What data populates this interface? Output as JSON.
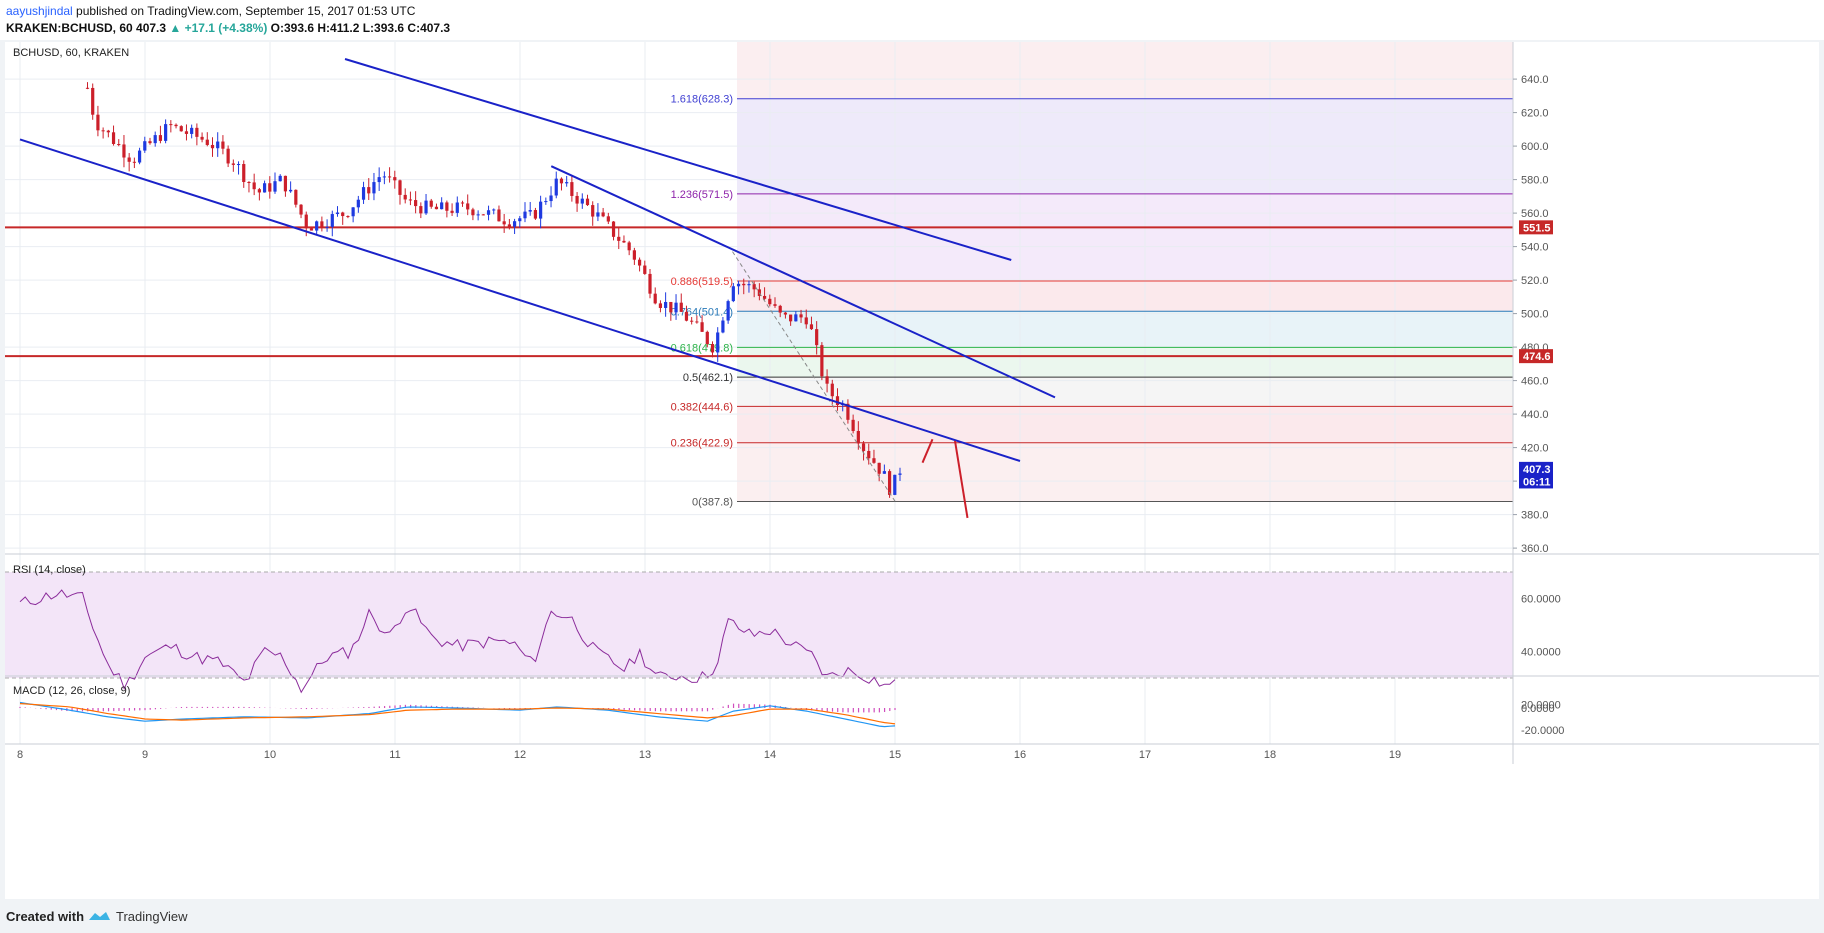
{
  "header": {
    "user": "aayushjindal",
    "published_text": " published on TradingView.com, September 15, 2017 01:53 UTC",
    "symbol_line": "KRAKEN:BCHUSD, 60  407.3 ",
    "change": "▲ +17.1 (+4.38%)",
    "ohlc": " O:393.6 H:411.2 L:393.6 C:407.3"
  },
  "chart_legend": "BCHUSD, 60, KRAKEN",
  "colors": {
    "bull": "#1e3ae0",
    "bear": "#cc1f2a",
    "channel": "#1a22c8",
    "hline": "#c62828",
    "rsi": "#8b2c9b",
    "macd": "#2196f3",
    "signal": "#ff6d00",
    "hist": "#d04dbd"
  },
  "price_scale": {
    "ticks": [
      "640.0",
      "620.0",
      "600.0",
      "580.0",
      "560.0",
      "540.0",
      "520.0",
      "500.0",
      "480.0",
      "460.0",
      "440.0",
      "420.0",
      "400.0",
      "380.0",
      "360.0"
    ],
    "badges": [
      {
        "label": "551.5",
        "value": 551.5,
        "color": "#c62828"
      },
      {
        "label": "474.6",
        "value": 474.6,
        "color": "#c62828"
      },
      {
        "label": "407.3",
        "value": 407.3,
        "color": "#1a22c8"
      },
      {
        "label": "06:11",
        "value": 399.8,
        "color": "#1a22c8"
      }
    ]
  },
  "time_axis": {
    "labels": [
      "8",
      "9",
      "10",
      "11",
      "12",
      "13",
      "14",
      "15",
      "16",
      "17",
      "18",
      "19"
    ]
  },
  "fib_levels": [
    {
      "label": "1.618(628.3)",
      "value": 628.3,
      "color": "#3f3fd2",
      "band": "#eeeafa"
    },
    {
      "label": "1.236(571.5)",
      "value": 571.5,
      "color": "#8e24aa",
      "band": "#f4eafa"
    },
    {
      "label": "0.886(519.5)",
      "value": 519.5,
      "color": "#e53935",
      "band": "#fbe9ec"
    },
    {
      "label": "0.764(501.4)",
      "value": 501.4,
      "color": "#2a7ab8",
      "band": "#e8f3f8"
    },
    {
      "label": "0.618(479.8)",
      "value": 479.8,
      "color": "#2db34a",
      "band": "#ebf7ee"
    },
    {
      "label": "0.5(462.1)",
      "value": 462.1,
      "color": "#333333",
      "band": "#f5f5f5"
    },
    {
      "label": "0.382(444.6)",
      "value": 444.6,
      "color": "#c62828",
      "band": "#fbe9ec"
    },
    {
      "label": "0.236(422.9)",
      "value": 422.9,
      "color": "#c62828",
      "band": "#fbeff0"
    },
    {
      "label": "0(387.8)",
      "value": 387.8,
      "color": "#555555",
      "band": "#fdf5f6"
    }
  ],
  "rsi": {
    "title": "RSI (14, close)",
    "ticks": [
      "60.0000",
      "40.0000",
      "20.0000"
    ],
    "band": [
      30,
      70
    ]
  },
  "macd": {
    "title": "MACD (12, 26, close, 9)",
    "ticks": [
      "0.0000",
      "-20.0000"
    ]
  },
  "footer": {
    "created": "Created with",
    "brand": "TradingView"
  },
  "chart_data": {
    "type": "candlestick",
    "title": "BCHUSD, 60, KRAKEN",
    "x_range_days": [
      8,
      19
    ],
    "ylim": [
      345,
      652
    ],
    "grid": true,
    "anchors": [
      [
        8.5,
        648
      ],
      [
        8.6,
        615
      ],
      [
        8.9,
        592
      ],
      [
        9.2,
        612
      ],
      [
        9.5,
        603
      ],
      [
        9.7,
        592
      ],
      [
        9.9,
        572
      ],
      [
        10.1,
        580
      ],
      [
        10.3,
        552
      ],
      [
        10.6,
        560
      ],
      [
        10.9,
        584
      ],
      [
        11.1,
        566
      ],
      [
        11.3,
        562
      ],
      [
        11.6,
        563
      ],
      [
        11.9,
        556
      ],
      [
        12.1,
        558
      ],
      [
        12.3,
        579
      ],
      [
        12.6,
        560
      ],
      [
        12.9,
        536
      ],
      [
        13.1,
        508
      ],
      [
        13.3,
        500
      ],
      [
        13.55,
        480
      ],
      [
        13.7,
        520
      ],
      [
        13.9,
        514
      ],
      [
        14.1,
        497
      ],
      [
        14.3,
        498
      ],
      [
        14.45,
        455
      ],
      [
        14.6,
        444
      ],
      [
        14.75,
        420
      ],
      [
        14.9,
        405
      ],
      [
        14.97,
        394
      ],
      [
        15.04,
        407
      ]
    ],
    "projection": [
      [
        15.22,
        411
      ],
      [
        15.3,
        425
      ],
      [
        15.48,
        424
      ],
      [
        15.58,
        378
      ]
    ],
    "channel_lines": [
      [
        [
          8.0,
          604
        ],
        [
          16.0,
          412
        ]
      ],
      [
        [
          10.6,
          652
        ],
        [
          15.93,
          532
        ]
      ],
      [
        [
          12.25,
          588
        ],
        [
          16.28,
          450
        ]
      ]
    ],
    "horizontal_lines": [
      551.5,
      474.6
    ],
    "rsi_anchors": [
      [
        8.0,
        58
      ],
      [
        8.3,
        62
      ],
      [
        8.5,
        60
      ],
      [
        8.7,
        35
      ],
      [
        8.85,
        27
      ],
      [
        9.0,
        38
      ],
      [
        9.2,
        42
      ],
      [
        9.4,
        38
      ],
      [
        9.6,
        36
      ],
      [
        9.8,
        28
      ],
      [
        9.95,
        40
      ],
      [
        10.1,
        38
      ],
      [
        10.25,
        26
      ],
      [
        10.45,
        38
      ],
      [
        10.65,
        40
      ],
      [
        10.8,
        55
      ],
      [
        10.95,
        45
      ],
      [
        11.1,
        58
      ],
      [
        11.3,
        45
      ],
      [
        11.5,
        42
      ],
      [
        11.8,
        44
      ],
      [
        11.95,
        43
      ],
      [
        12.1,
        35
      ],
      [
        12.25,
        55
      ],
      [
        12.4,
        53
      ],
      [
        12.6,
        40
      ],
      [
        12.85,
        33
      ],
      [
        12.95,
        40
      ],
      [
        13.1,
        30
      ],
      [
        13.25,
        31
      ],
      [
        13.45,
        30
      ],
      [
        13.6,
        36
      ],
      [
        13.65,
        52
      ],
      [
        13.85,
        46
      ],
      [
        14.0,
        48
      ],
      [
        14.2,
        42
      ],
      [
        14.35,
        38
      ],
      [
        14.45,
        30
      ],
      [
        14.6,
        33
      ],
      [
        14.75,
        31
      ],
      [
        14.9,
        28
      ],
      [
        14.97,
        26
      ],
      [
        15.04,
        35
      ]
    ],
    "macd_anchors": [
      [
        8.0,
        5
      ],
      [
        8.4,
        -2
      ],
      [
        8.7,
        -8
      ],
      [
        9.0,
        -12
      ],
      [
        9.3,
        -10
      ],
      [
        9.8,
        -8
      ],
      [
        10.3,
        -9
      ],
      [
        10.8,
        -5
      ],
      [
        11.1,
        1
      ],
      [
        11.5,
        0
      ],
      [
        12.0,
        -2
      ],
      [
        12.3,
        1
      ],
      [
        12.7,
        -2
      ],
      [
        13.1,
        -8
      ],
      [
        13.5,
        -12
      ],
      [
        13.7,
        -3
      ],
      [
        14.0,
        2
      ],
      [
        14.3,
        -3
      ],
      [
        14.6,
        -10
      ],
      [
        14.9,
        -17
      ],
      [
        15.04,
        -16
      ]
    ],
    "signal_anchors": [
      [
        8.0,
        4
      ],
      [
        8.4,
        1
      ],
      [
        8.7,
        -5
      ],
      [
        9.0,
        -10
      ],
      [
        9.3,
        -11
      ],
      [
        9.8,
        -9
      ],
      [
        10.3,
        -8
      ],
      [
        10.8,
        -6
      ],
      [
        11.1,
        -2
      ],
      [
        11.5,
        -1
      ],
      [
        12.0,
        -1
      ],
      [
        12.3,
        0
      ],
      [
        12.7,
        -1
      ],
      [
        13.1,
        -5
      ],
      [
        13.5,
        -9
      ],
      [
        13.7,
        -7
      ],
      [
        14.0,
        -1
      ],
      [
        14.3,
        -1
      ],
      [
        14.6,
        -6
      ],
      [
        14.9,
        -13
      ],
      [
        15.04,
        -15
      ]
    ]
  }
}
